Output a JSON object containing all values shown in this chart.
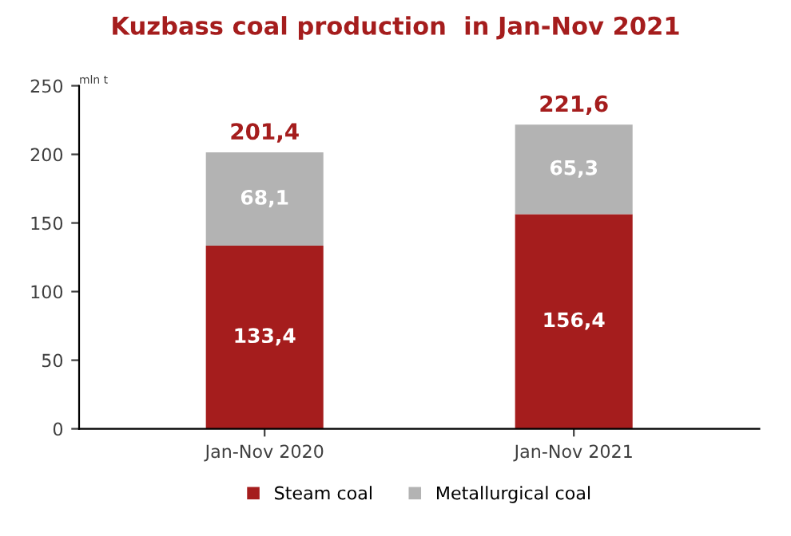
{
  "chart_data": {
    "type": "bar",
    "title": "Kuzbass coal production  in Jan-Nov 2021",
    "ylabel": "mln t",
    "categories": [
      "Jan-Nov 2020",
      "Jan-Nov 2021"
    ],
    "series": [
      {
        "name": "Steam coal",
        "color": "#a51d1d",
        "values": [
          133.4,
          156.4
        ],
        "value_labels": [
          "133,4",
          "156,4"
        ]
      },
      {
        "name": "Metallurgical coal",
        "color": "#b3b3b3",
        "values": [
          68.1,
          65.3
        ],
        "value_labels": [
          "68,1",
          "65,3"
        ]
      }
    ],
    "stacked": true,
    "totals": [
      "201,4",
      "221,6"
    ],
    "ylim": [
      0,
      250
    ],
    "yticks": [
      0,
      50,
      100,
      150,
      200,
      250
    ],
    "grid": false,
    "legend": "bottom"
  }
}
